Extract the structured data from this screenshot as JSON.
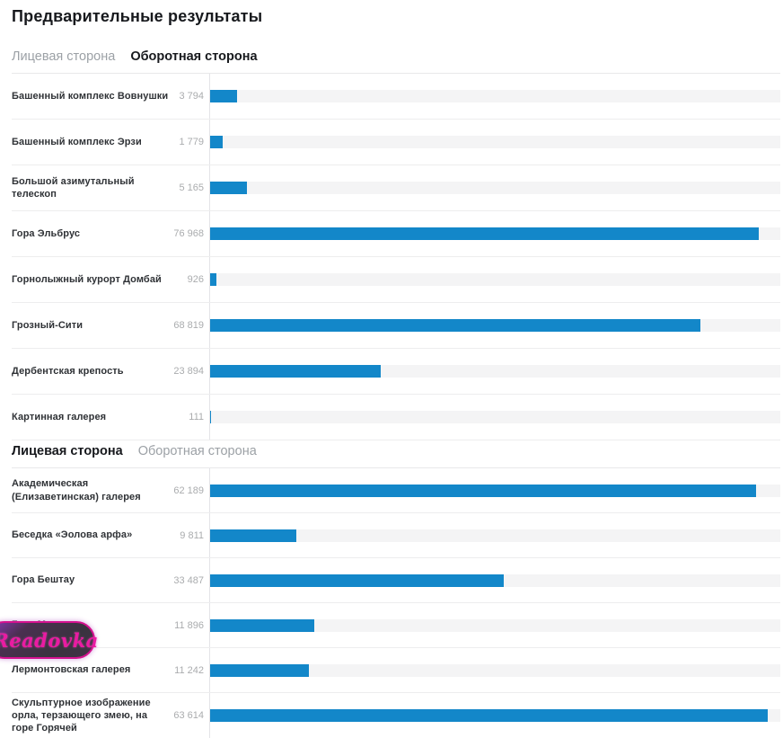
{
  "page": {
    "title": "Предварительные результаты"
  },
  "watermark": {
    "text": "Readovka"
  },
  "colors": {
    "bar": "#1387c9",
    "track": "#f4f4f5",
    "active_tab": "#17191d",
    "inactive_tab": "#9ca1a6",
    "label_text": "#2f3236",
    "value_text": "#aaacae",
    "watermark_pink": "#d4118f"
  },
  "sections": [
    {
      "tabs": [
        {
          "label": "Лицевая сторона",
          "active": false
        },
        {
          "label": "Оборотная сторона",
          "active": true
        }
      ],
      "axis_max": 80000,
      "rows": [
        {
          "label": "Башенный комплекс Вовнушки",
          "value": "3 794",
          "value_num": 3794
        },
        {
          "label": "Башенный комплекс Эрзи",
          "value": "1 779",
          "value_num": 1779
        },
        {
          "label": "Большой азимутальный телескоп",
          "value": "5 165",
          "value_num": 5165
        },
        {
          "label": "Гора Эльбрус",
          "value": "76 968",
          "value_num": 76968
        },
        {
          "label": "Горнолыжный курорт Домбай",
          "value": "926",
          "value_num": 926
        },
        {
          "label": "Грозный-Сити",
          "value": "68 819",
          "value_num": 68819
        },
        {
          "label": "Дербентская крепость",
          "value": "23 894",
          "value_num": 23894
        },
        {
          "label": "Картинная галерея",
          "value": "111",
          "value_num": 111
        }
      ]
    },
    {
      "tabs": [
        {
          "label": "Лицевая сторона",
          "active": true
        },
        {
          "label": "Оборотная сторона",
          "active": false
        }
      ],
      "axis_max": 65000,
      "rows": [
        {
          "label": "Академическая (Елизаветинская) галерея",
          "value": "62 189",
          "value_num": 62189
        },
        {
          "label": "Беседка «Эолова арфа»",
          "value": "9 811",
          "value_num": 9811
        },
        {
          "label": "Гора Бештау",
          "value": "33 487",
          "value_num": 33487
        },
        {
          "label": "Гора Машук",
          "value": "11 896",
          "value_num": 11896
        },
        {
          "label": "Лермонтовская галерея",
          "value": "11 242",
          "value_num": 11242
        },
        {
          "label": "Скульптурное изображение орла, терзающего змею, на горе Горячей",
          "value": "63 614",
          "value_num": 63614
        }
      ]
    }
  ],
  "chart_data": [
    {
      "type": "bar",
      "orientation": "horizontal",
      "title": "Оборотная сторона",
      "categories": [
        "Башенный комплекс Вовнушки",
        "Башенный комплекс Эрзи",
        "Большой азимутальный телескоп",
        "Гора Эльбрус",
        "Горнолыжный курорт Домбай",
        "Грозный-Сити",
        "Дербентская крепость",
        "Картинная галерея"
      ],
      "values": [
        3794,
        1779,
        5165,
        76968,
        926,
        68819,
        23894,
        111
      ],
      "xlabel": "",
      "ylabel": "",
      "xlim": [
        0,
        80000
      ],
      "grid": false,
      "legend": "none",
      "bar_color": "#1387c9"
    },
    {
      "type": "bar",
      "orientation": "horizontal",
      "title": "Лицевая сторона",
      "categories": [
        "Академическая (Елизаветинская) галерея",
        "Беседка «Эолова арфа»",
        "Гора Бештау",
        "Гора Машук",
        "Лермонтовская галерея",
        "Скульптурное изображение орла, терзающего змею, на горе Горячей"
      ],
      "values": [
        62189,
        9811,
        33487,
        11896,
        11242,
        63614
      ],
      "xlabel": "",
      "ylabel": "",
      "xlim": [
        0,
        65000
      ],
      "grid": false,
      "legend": "none",
      "bar_color": "#1387c9"
    }
  ]
}
